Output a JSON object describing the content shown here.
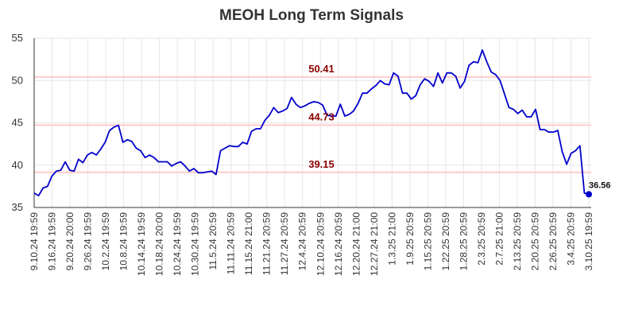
{
  "chart_data": {
    "type": "line",
    "title": "MEOH Long Term Signals",
    "ylim": [
      35,
      55
    ],
    "y_ticks": [
      "35",
      "40",
      "45",
      "50",
      "55"
    ],
    "grid": true,
    "x_tick_labels": [
      "9.10.24 19:59",
      "9.16.24 19:59",
      "9.20.24 20:00",
      "9.26.24 19:59",
      "10.2.24 19:59",
      "10.8.24 19:59",
      "10.14.24 19:59",
      "10.18.24 20:00",
      "10.24.24 19:59",
      "10.30.24 19:59",
      "11.5.24 20:59",
      "11.11.24 20:59",
      "11.15.24 21:00",
      "11.21.24 20:59",
      "11.27.24 20:59",
      "12.4.24 20:59",
      "12.10.24 20:59",
      "12.16.24 20:59",
      "12.20.24 21:00",
      "12.27.24 21:00",
      "1.3.25 21:00",
      "1.9.25 20:59",
      "1.15.25 20:59",
      "1.22.25 20:59",
      "1.28.25 20:59",
      "2.3.25 20:59",
      "2.7.25 21:00",
      "2.13.25 20:59",
      "2.20.25 20:59",
      "2.26.25 20:59",
      "3.4.25 20:59",
      "3.10.25 19:59"
    ],
    "series": [
      {
        "color": "#0000cc",
        "values": [
          36.7,
          36.4,
          37.3,
          37.5,
          38.7,
          39.3,
          39.4,
          40.4,
          39.4,
          39.3,
          40.7,
          40.3,
          41.2,
          41.5,
          41.2,
          41.9,
          42.7,
          44.1,
          44.5,
          44.7,
          42.7,
          43.0,
          42.8,
          42.0,
          41.7,
          40.9,
          41.2,
          40.9,
          40.4,
          40.4,
          40.4,
          39.9,
          40.2,
          40.4,
          39.9,
          39.3,
          39.6,
          39.1,
          39.1,
          39.2,
          39.3,
          38.9,
          41.7,
          42.0,
          42.3,
          42.2,
          42.2,
          42.7,
          42.5,
          44.0,
          44.3,
          44.3,
          45.3,
          45.9,
          46.8,
          46.2,
          46.4,
          46.7,
          48.0,
          47.2,
          46.8,
          47.0,
          47.3,
          47.5,
          47.4,
          47.1,
          45.9,
          45.8,
          45.8,
          47.2,
          45.8,
          46.0,
          46.4,
          47.3,
          48.5,
          48.5,
          49.0,
          49.4,
          50.0,
          49.6,
          49.5,
          50.9,
          50.5,
          48.5,
          48.5,
          47.8,
          48.2,
          49.5,
          50.2,
          49.9,
          49.3,
          50.9,
          49.7,
          50.9,
          50.9,
          50.5,
          49.1,
          49.9,
          51.8,
          52.2,
          52.1,
          53.6,
          52.2,
          51.0,
          50.7,
          50.0,
          48.4,
          46.8,
          46.6,
          46.1,
          46.5,
          45.7,
          45.7,
          46.6,
          44.2,
          44.2,
          43.9,
          43.9,
          44.1,
          41.6,
          40.1,
          41.4,
          41.7,
          42.3,
          36.7,
          36.56
        ]
      }
    ],
    "reference_lines": [
      {
        "value": 50.41,
        "label": "50.41",
        "line_color": "#ffcccc",
        "label_color": "#8b0000"
      },
      {
        "value": 44.73,
        "label": "44.73",
        "line_color": "#ffcccc",
        "label_color": "#8b0000"
      },
      {
        "value": 39.15,
        "label": "39.15",
        "line_color": "#ffcccc",
        "label_color": "#8b0000"
      }
    ],
    "last_value_label": "36.56",
    "colors": {
      "line": "#0000cc",
      "grid": "#e6e6e6",
      "axis": "#333333",
      "ref_line": "#ffcccc",
      "ref_label": "#8b0000"
    }
  }
}
